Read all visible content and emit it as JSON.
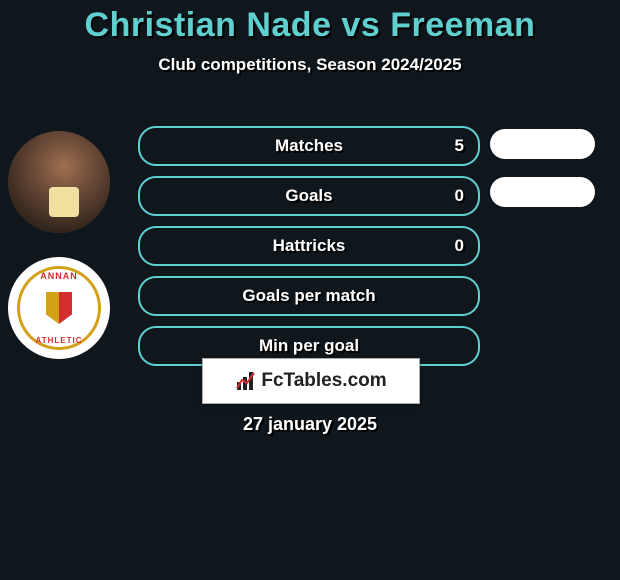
{
  "header": {
    "title": "Christian Nade vs Freeman",
    "subtitle": "Club competitions, Season 2024/2025"
  },
  "player": {
    "name": "Christian Nade",
    "club": {
      "top_text": "ANNAN",
      "bottom_text": "ATHLETIC"
    }
  },
  "stats": [
    {
      "label": "Matches",
      "value": "5",
      "has_value": true,
      "right_pill": true
    },
    {
      "label": "Goals",
      "value": "0",
      "has_value": true,
      "right_pill": true
    },
    {
      "label": "Hattricks",
      "value": "0",
      "has_value": true,
      "right_pill": false
    },
    {
      "label": "Goals per match",
      "value": "",
      "has_value": false,
      "right_pill": false
    },
    {
      "label": "Min per goal",
      "value": "",
      "has_value": false,
      "right_pill": false
    }
  ],
  "brand": {
    "text": "FcTables.com"
  },
  "date": "27 january 2025",
  "style": {
    "bg_color": "#0f171d",
    "accent_color": "#5fd0cf",
    "text_color": "#ffffff",
    "text_shadow": "#000000",
    "pill_bg": "#ffffff",
    "brand_box_bg": "#ffffff",
    "brand_text_color": "#222222",
    "title_fontsize": 34,
    "subtitle_fontsize": 17,
    "stat_label_fontsize": 17,
    "date_fontsize": 18
  }
}
